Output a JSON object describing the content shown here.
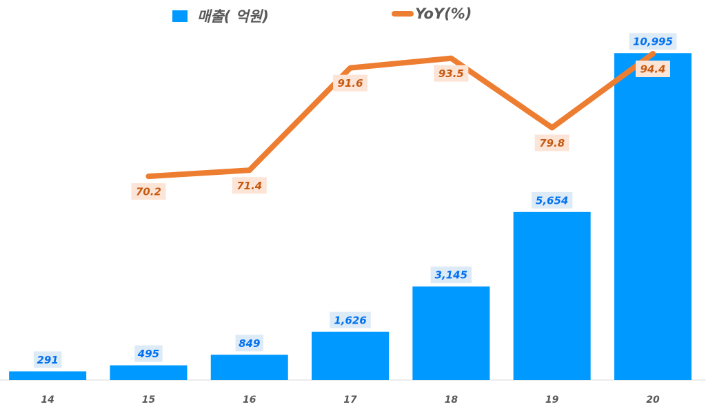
{
  "chart_data": {
    "type": "bar+line",
    "categories": [
      "14",
      "15",
      "16",
      "17",
      "18",
      "19",
      "20"
    ],
    "series": [
      {
        "name": "매출( 억원)",
        "type": "bar",
        "axis": "primary",
        "color": "#0099FF",
        "values": [
          291,
          495,
          849,
          1626,
          3145,
          5654,
          10995
        ],
        "labels": [
          "291",
          "495",
          "849",
          "1,626",
          "3,145",
          "5,654",
          "10,995"
        ]
      },
      {
        "name": "YoY(%)",
        "type": "line",
        "axis": "secondary",
        "color": "#ED7D31",
        "values": [
          null,
          70.2,
          71.4,
          91.6,
          93.5,
          79.8,
          94.4
        ],
        "labels": [
          "",
          "70.2",
          "71.4",
          "91.6",
          "93.5",
          "79.8",
          "94.4"
        ]
      }
    ],
    "ylim": [
      0,
      11000
    ],
    "y2lim": [
      30,
      105
    ],
    "grid": false,
    "legend": "top",
    "xlabel": "",
    "ylabel": "",
    "title": ""
  }
}
